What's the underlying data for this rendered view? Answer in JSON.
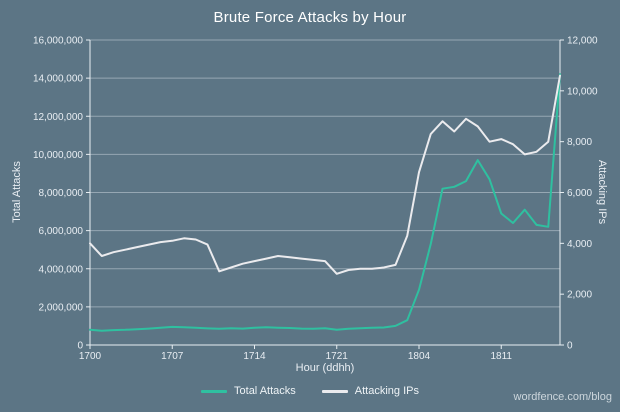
{
  "theme": {
    "background": "#5c7585",
    "text": "#eef3f6",
    "grid": "#c6d0d8",
    "axis": "#e8eef2"
  },
  "chart": {
    "title": "Brute Force Attacks by Hour"
  },
  "chart_data": {
    "type": "line",
    "title": "Brute Force Attacks by Hour",
    "x_label": "Hour (ddhh)",
    "grid": "horizontal",
    "legend_position": "bottom",
    "left_axis": {
      "label": "Total Attacks",
      "min": 0,
      "max": 16000000,
      "ticks": [
        {
          "value": 0,
          "label": "0"
        },
        {
          "value": 2000000,
          "label": "2,000,000"
        },
        {
          "value": 4000000,
          "label": "4,000,000"
        },
        {
          "value": 6000000,
          "label": "6,000,000"
        },
        {
          "value": 8000000,
          "label": "8,000,000"
        },
        {
          "value": 10000000,
          "label": "10,000,000"
        },
        {
          "value": 12000000,
          "label": "12,000,000"
        },
        {
          "value": 14000000,
          "label": "14,000,000"
        },
        {
          "value": 16000000,
          "label": "16,000,000"
        }
      ]
    },
    "right_axis": {
      "label": "Attacking IPs",
      "min": 0,
      "max": 12000,
      "ticks": [
        {
          "value": 0,
          "label": "0"
        },
        {
          "value": 2000,
          "label": "2,000"
        },
        {
          "value": 4000,
          "label": "4,000"
        },
        {
          "value": 6000,
          "label": "6,000"
        },
        {
          "value": 8000,
          "label": "8,000"
        },
        {
          "value": 10000,
          "label": "10,000"
        },
        {
          "value": 12000,
          "label": "12,000"
        }
      ]
    },
    "x": [
      "1700",
      "1701",
      "1702",
      "1703",
      "1704",
      "1705",
      "1706",
      "1707",
      "1708",
      "1709",
      "1710",
      "1711",
      "1712",
      "1713",
      "1714",
      "1715",
      "1716",
      "1717",
      "1718",
      "1719",
      "1720",
      "1721",
      "1722",
      "1723",
      "1800",
      "1801",
      "1802",
      "1803",
      "1804",
      "1805",
      "1806",
      "1807",
      "1808",
      "1809",
      "1810",
      "1811",
      "1812",
      "1813",
      "1814",
      "1815",
      "1816"
    ],
    "x_ticks": [
      {
        "index": 0,
        "label": "1700"
      },
      {
        "index": 7,
        "label": "1707"
      },
      {
        "index": 14,
        "label": "1714"
      },
      {
        "index": 21,
        "label": "1721"
      },
      {
        "index": 28,
        "label": "1804"
      },
      {
        "index": 35,
        "label": "1811"
      }
    ],
    "series": [
      {
        "name": "Total Attacks",
        "axis": "left",
        "color": "#2fc0a0",
        "values": [
          800000,
          750000,
          780000,
          800000,
          830000,
          860000,
          900000,
          950000,
          930000,
          900000,
          870000,
          850000,
          880000,
          860000,
          900000,
          930000,
          910000,
          890000,
          860000,
          850000,
          880000,
          800000,
          850000,
          880000,
          900000,
          920000,
          1000000,
          1300000,
          2900000,
          5300000,
          8200000,
          8300000,
          8600000,
          9700000,
          8700000,
          6900000,
          6400000,
          7100000,
          6300000,
          6200000,
          14200000
        ]
      },
      {
        "name": "Attacking IPs",
        "axis": "right",
        "color": "#ebebee",
        "values": [
          4000,
          3500,
          3650,
          3750,
          3850,
          3950,
          4050,
          4100,
          4200,
          4150,
          3950,
          2900,
          3050,
          3200,
          3300,
          3400,
          3500,
          3450,
          3400,
          3350,
          3300,
          2800,
          2950,
          3000,
          3000,
          3050,
          3150,
          4300,
          6800,
          8300,
          8800,
          8400,
          8900,
          8600,
          8000,
          8100,
          7900,
          7500,
          7600,
          8000,
          10600
        ]
      }
    ]
  },
  "footer": {
    "watermark": "wordfence.com/blog"
  }
}
